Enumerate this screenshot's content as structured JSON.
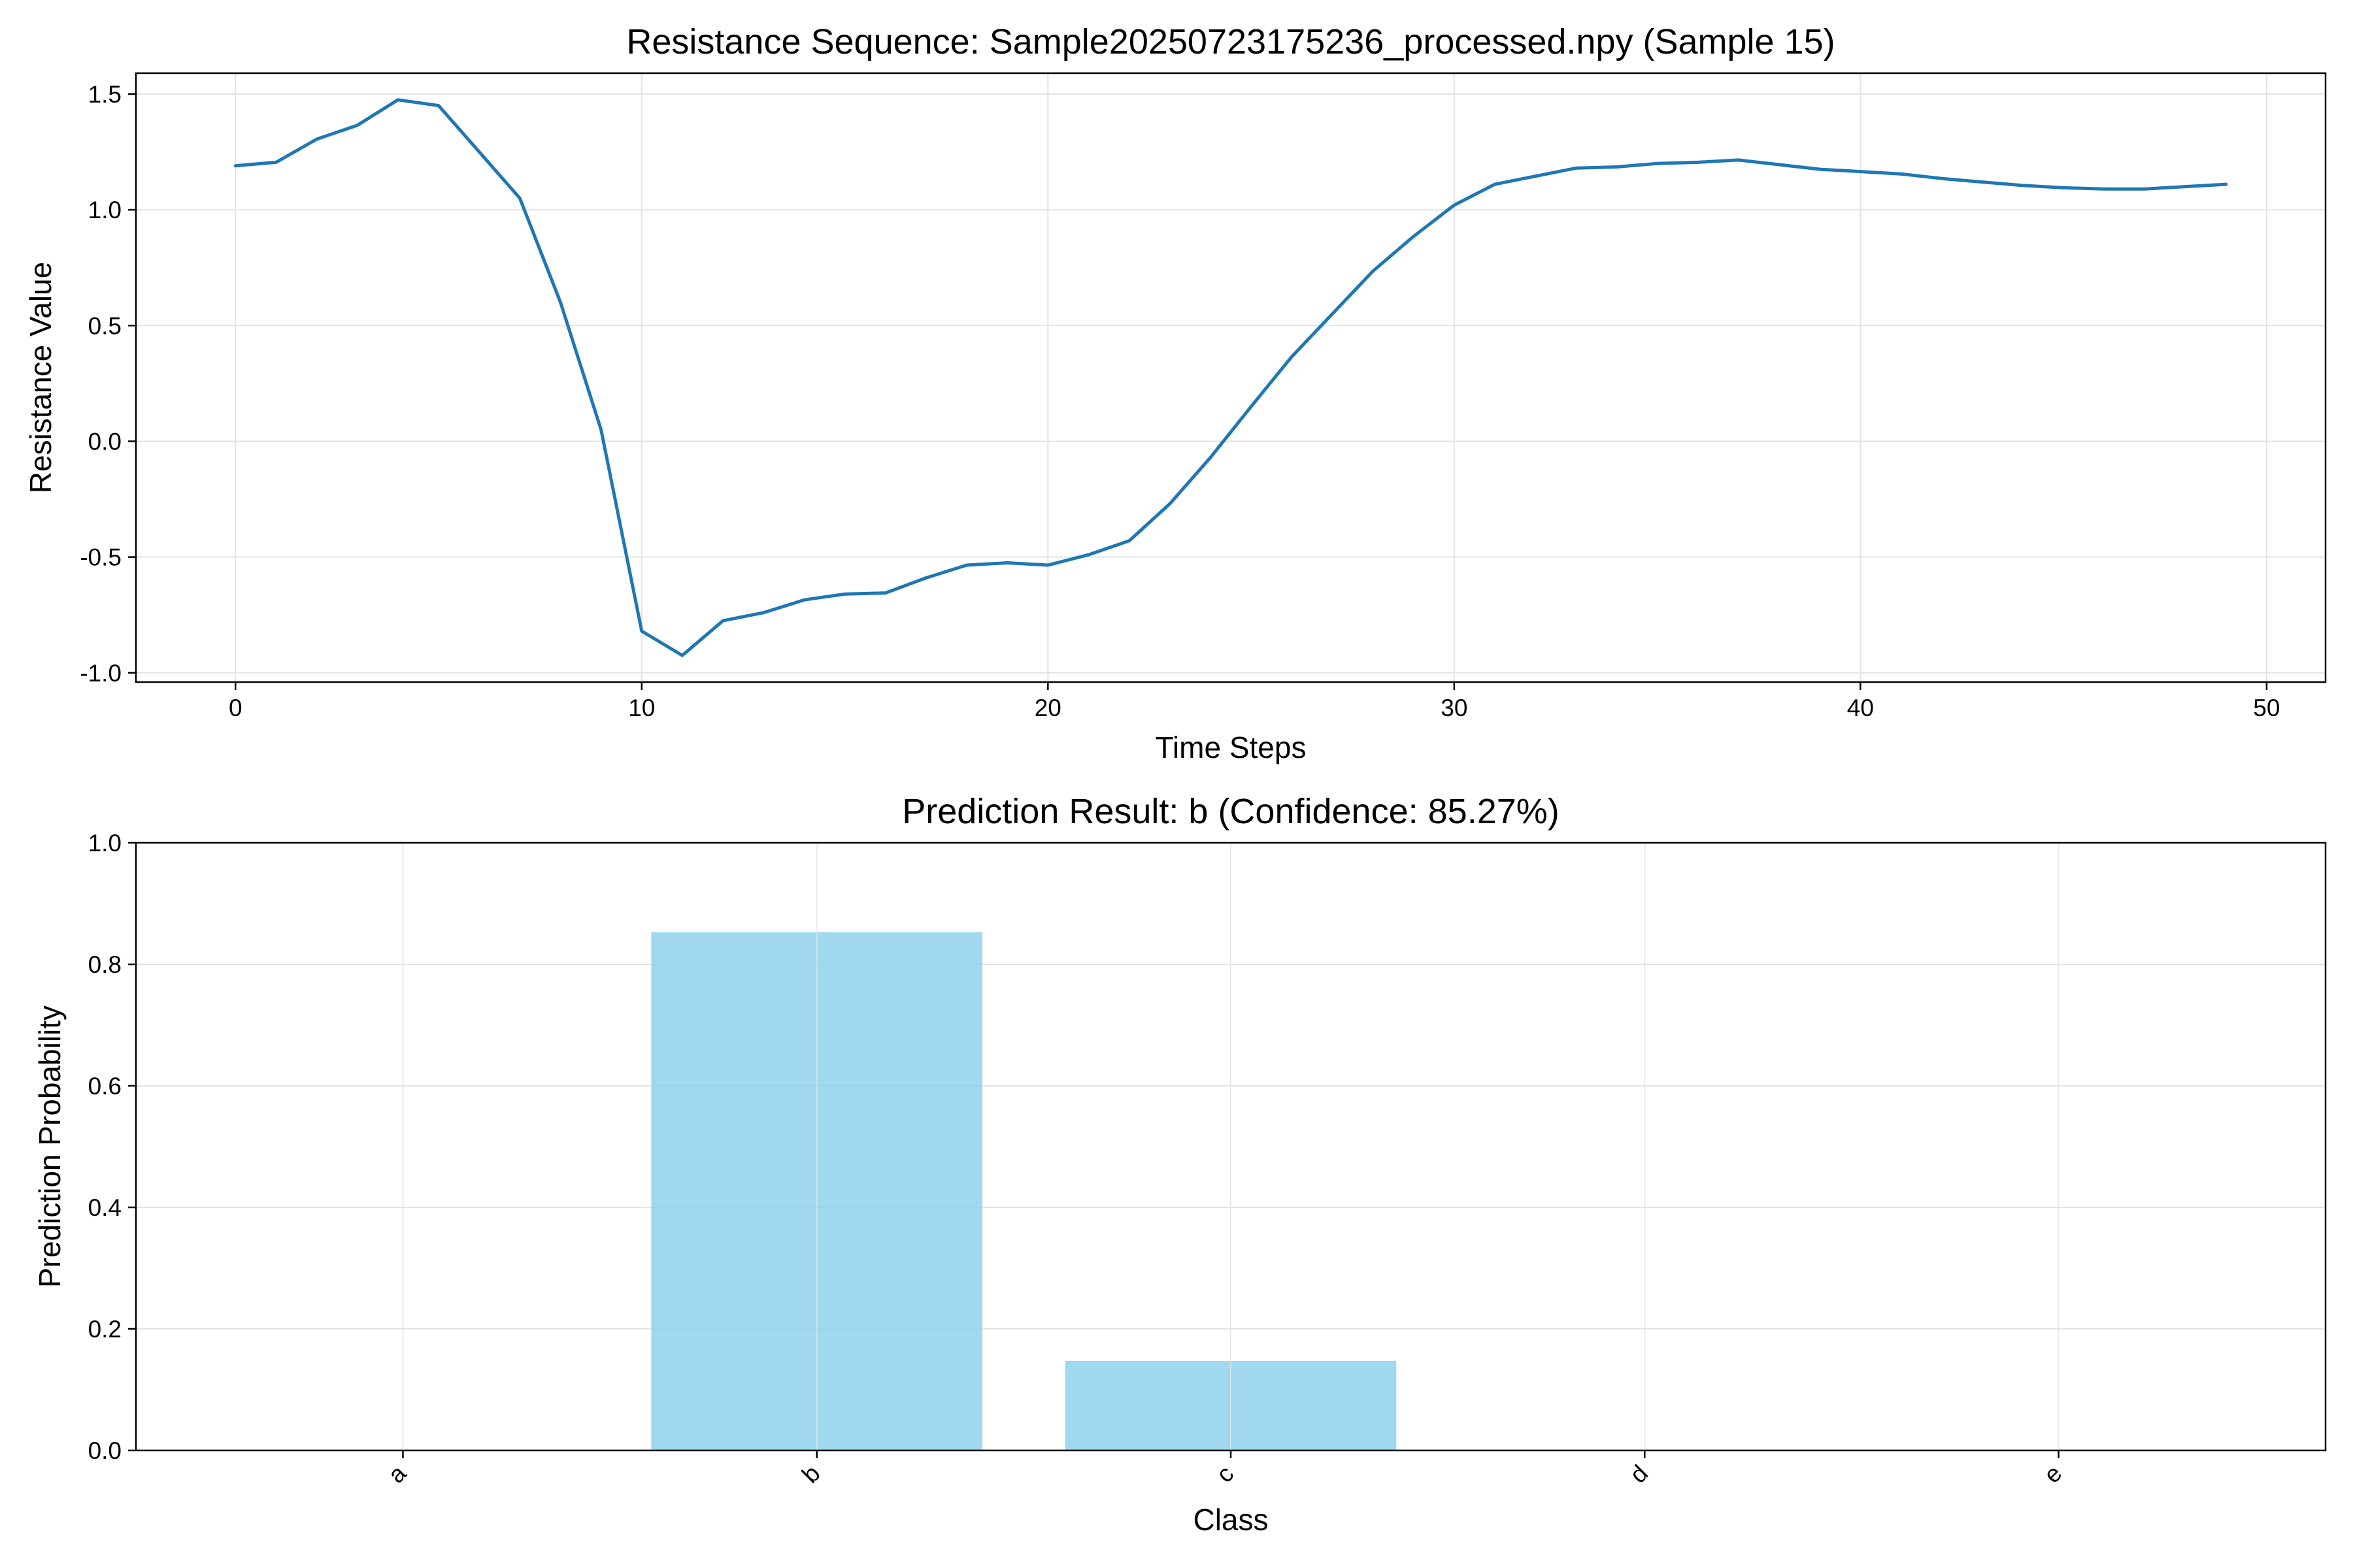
{
  "chart_data": [
    {
      "type": "line",
      "title": "Resistance Sequence: Sample20250723175236_processed.npy (Sample 15)",
      "xlabel": "Time Steps",
      "ylabel": "Resistance Value",
      "xlim": [
        -2.45,
        51.45
      ],
      "ylim": [
        -1.04,
        1.59
      ],
      "xticks": [
        0,
        10,
        20,
        30,
        40,
        50
      ],
      "xtick_labels": [
        "0",
        "10",
        "20",
        "30",
        "40",
        "50"
      ],
      "yticks": [
        -1.0,
        -0.5,
        0.0,
        0.5,
        1.0,
        1.5
      ],
      "ytick_labels": [
        "-1.0",
        "-0.5",
        "0.0",
        "0.5",
        "1.0",
        "1.5"
      ],
      "grid": true,
      "legend": "none",
      "color": "#1f77b4",
      "series": [
        {
          "x": [
            0,
            1,
            2,
            3,
            4,
            5,
            6,
            7,
            8,
            9,
            10,
            11,
            12,
            13,
            14,
            15,
            16,
            17,
            18,
            19,
            20,
            21,
            22,
            23,
            24,
            25,
            26,
            27,
            28,
            29,
            30,
            31,
            32,
            33,
            34,
            35,
            36,
            37,
            38,
            39,
            40,
            41,
            42,
            43,
            44,
            45,
            46,
            47,
            48,
            49
          ],
          "values": [
            1.19,
            1.205,
            1.305,
            1.365,
            1.475,
            1.45,
            1.25,
            1.05,
            0.6,
            0.05,
            -0.82,
            -0.925,
            -0.775,
            -0.74,
            -0.685,
            -0.66,
            -0.655,
            -0.59,
            -0.535,
            -0.525,
            -0.535,
            -0.49,
            -0.43,
            -0.27,
            -0.07,
            0.15,
            0.365,
            0.55,
            0.735,
            0.885,
            1.02,
            1.11,
            1.145,
            1.18,
            1.185,
            1.2,
            1.205,
            1.215,
            1.195,
            1.175,
            1.165,
            1.155,
            1.135,
            1.12,
            1.105,
            1.095,
            1.09,
            1.09,
            1.1,
            1.11
          ]
        }
      ]
    },
    {
      "type": "bar",
      "title": "Prediction Result: b (Confidence: 85.27%)",
      "xlabel": "Class",
      "ylabel": "Prediction Probability",
      "categories": [
        "a",
        "b",
        "c",
        "d",
        "e"
      ],
      "values": [
        0.0,
        0.8527,
        0.1473,
        0.0,
        0.0
      ],
      "ylim": [
        0,
        1.0
      ],
      "yticks": [
        0.0,
        0.2,
        0.4,
        0.6,
        0.8,
        1.0
      ],
      "ytick_labels": [
        "0.0",
        "0.2",
        "0.4",
        "0.6",
        "0.8",
        "1.0"
      ],
      "grid": true,
      "legend": "none",
      "color": "#87ceeb"
    }
  ]
}
